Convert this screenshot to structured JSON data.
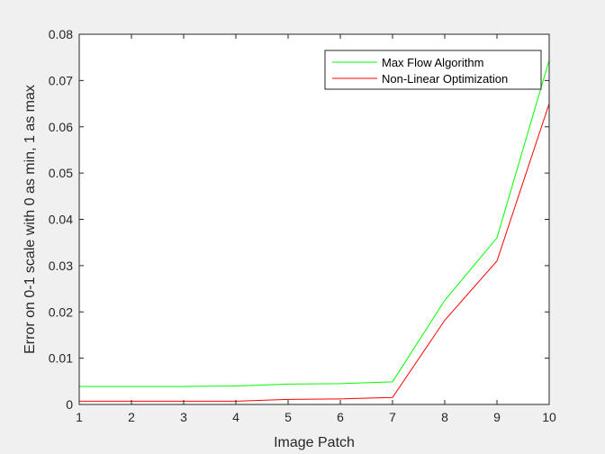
{
  "chart_data": {
    "type": "line",
    "title": "",
    "xlabel": "Image Patch",
    "ylabel": "Error on 0-1 scale with 0 as min, 1 as max",
    "x": [
      1,
      2,
      3,
      4,
      5,
      6,
      7,
      8,
      9,
      10
    ],
    "xlim": [
      1,
      10
    ],
    "ylim": [
      0,
      0.08
    ],
    "xticks": [
      "1",
      "2",
      "3",
      "4",
      "5",
      "6",
      "7",
      "8",
      "9",
      "10"
    ],
    "yticks": [
      "0",
      "0.01",
      "0.02",
      "0.03",
      "0.04",
      "0.05",
      "0.06",
      "0.07",
      "0.08"
    ],
    "grid": false,
    "legend_position": "top-right",
    "series": [
      {
        "name": "Max Flow Algorithm",
        "color": "#00ff00",
        "values": [
          0.0039,
          0.0039,
          0.0039,
          0.004,
          0.0044,
          0.0045,
          0.0049,
          0.0225,
          0.036,
          0.0744
        ]
      },
      {
        "name": "Non-Linear Optimization",
        "color": "#ff0000",
        "values": [
          0.0007,
          0.0007,
          0.0007,
          0.0007,
          0.0011,
          0.0012,
          0.0015,
          0.0182,
          0.031,
          0.065
        ]
      }
    ]
  }
}
